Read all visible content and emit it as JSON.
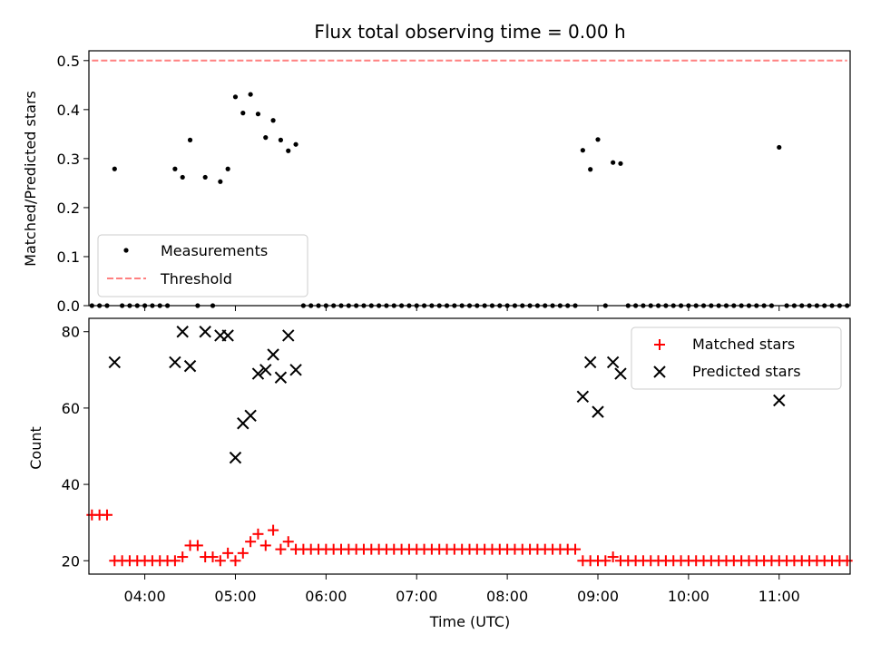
{
  "chart_data": [
    {
      "type": "scatter",
      "title": "Flux total observing time = 0.00 h",
      "xlabel": "",
      "ylabel": "Matched/Predicted stars",
      "xlim": [
        "03:23",
        "11:47"
      ],
      "ylim": [
        0,
        0.52
      ],
      "yticks": [
        "0.0",
        "0.1",
        "0.2",
        "0.3",
        "0.4",
        "0.5"
      ],
      "grid": false,
      "legend_position": "lower-left",
      "series": [
        {
          "name": "Measurements",
          "marker": "dot",
          "color": "#000000",
          "points": [
            {
              "x": "03:40",
              "y": 0.279
            },
            {
              "x": "04:20",
              "y": 0.279
            },
            {
              "x": "04:25",
              "y": 0.262
            },
            {
              "x": "04:30",
              "y": 0.338
            },
            {
              "x": "04:40",
              "y": 0.262
            },
            {
              "x": "04:50",
              "y": 0.253
            },
            {
              "x": "04:55",
              "y": 0.279
            },
            {
              "x": "05:00",
              "y": 0.426
            },
            {
              "x": "05:05",
              "y": 0.393
            },
            {
              "x": "05:10",
              "y": 0.431
            },
            {
              "x": "05:15",
              "y": 0.391
            },
            {
              "x": "05:20",
              "y": 0.343
            },
            {
              "x": "05:25",
              "y": 0.378
            },
            {
              "x": "05:30",
              "y": 0.338
            },
            {
              "x": "05:35",
              "y": 0.316
            },
            {
              "x": "05:40",
              "y": 0.329
            },
            {
              "x": "08:50",
              "y": 0.317
            },
            {
              "x": "08:55",
              "y": 0.278
            },
            {
              "x": "09:00",
              "y": 0.339
            },
            {
              "x": "09:10",
              "y": 0.292
            },
            {
              "x": "09:15",
              "y": 0.29
            },
            {
              "x": "11:00",
              "y": 0.323
            }
          ]
        },
        {
          "name": "Threshold",
          "type": "line",
          "dashed": true,
          "color": "#ff8080",
          "points": [
            {
              "x": "03:25",
              "y": 0.5
            },
            {
              "x": "11:45",
              "y": 0.5
            }
          ]
        }
      ]
    },
    {
      "type": "scatter",
      "title": "",
      "xlabel": "Time (UTC)",
      "ylabel": "Count",
      "xlim": [
        "03:23",
        "11:47"
      ],
      "ylim": [
        16.5,
        83.5
      ],
      "yticks": [
        "20",
        "40",
        "60",
        "80"
      ],
      "xticks": [
        "04:00",
        "05:00",
        "06:00",
        "07:00",
        "08:00",
        "09:00",
        "10:00",
        "11:00"
      ],
      "grid": false,
      "legend_position": "upper-right",
      "series": [
        {
          "name": "Matched stars",
          "marker": "plus",
          "color": "#ff0000",
          "points": [
            {
              "x": "03:25",
              "y": 32
            },
            {
              "x": "03:30",
              "y": 32
            },
            {
              "x": "03:35",
              "y": 32
            },
            {
              "x": "03:40",
              "y": 20
            },
            {
              "x": "03:45",
              "y": 20
            },
            {
              "x": "03:50",
              "y": 20
            },
            {
              "x": "03:55",
              "y": 20
            },
            {
              "x": "04:00",
              "y": 20
            },
            {
              "x": "04:05",
              "y": 20
            },
            {
              "x": "04:10",
              "y": 20
            },
            {
              "x": "04:15",
              "y": 20
            },
            {
              "x": "04:20",
              "y": 20
            },
            {
              "x": "04:25",
              "y": 21
            },
            {
              "x": "04:30",
              "y": 24
            },
            {
              "x": "04:35",
              "y": 24
            },
            {
              "x": "04:40",
              "y": 21
            },
            {
              "x": "04:45",
              "y": 21
            },
            {
              "x": "04:50",
              "y": 20
            },
            {
              "x": "04:55",
              "y": 22
            },
            {
              "x": "05:00",
              "y": 20
            },
            {
              "x": "05:05",
              "y": 22
            },
            {
              "x": "05:10",
              "y": 25
            },
            {
              "x": "05:15",
              "y": 27
            },
            {
              "x": "05:20",
              "y": 24
            },
            {
              "x": "05:25",
              "y": 28
            },
            {
              "x": "05:30",
              "y": 23
            },
            {
              "x": "05:35",
              "y": 25
            },
            {
              "x": "05:40",
              "y": 23
            },
            {
              "x": "05:45",
              "y": 23
            },
            {
              "x": "05:50",
              "y": 23
            },
            {
              "x": "05:55",
              "y": 23
            },
            {
              "x": "06:00",
              "y": 23
            },
            {
              "x": "06:05",
              "y": 23
            },
            {
              "x": "06:10",
              "y": 23
            },
            {
              "x": "06:15",
              "y": 23
            },
            {
              "x": "06:20",
              "y": 23
            },
            {
              "x": "06:25",
              "y": 23
            },
            {
              "x": "06:30",
              "y": 23
            },
            {
              "x": "06:35",
              "y": 23
            },
            {
              "x": "06:40",
              "y": 23
            },
            {
              "x": "06:45",
              "y": 23
            },
            {
              "x": "06:50",
              "y": 23
            },
            {
              "x": "06:55",
              "y": 23
            },
            {
              "x": "07:00",
              "y": 23
            },
            {
              "x": "07:05",
              "y": 23
            },
            {
              "x": "07:10",
              "y": 23
            },
            {
              "x": "07:15",
              "y": 23
            },
            {
              "x": "07:20",
              "y": 23
            },
            {
              "x": "07:25",
              "y": 23
            },
            {
              "x": "07:30",
              "y": 23
            },
            {
              "x": "07:35",
              "y": 23
            },
            {
              "x": "07:40",
              "y": 23
            },
            {
              "x": "07:45",
              "y": 23
            },
            {
              "x": "07:50",
              "y": 23
            },
            {
              "x": "07:55",
              "y": 23
            },
            {
              "x": "08:00",
              "y": 23
            },
            {
              "x": "08:05",
              "y": 23
            },
            {
              "x": "08:10",
              "y": 23
            },
            {
              "x": "08:15",
              "y": 23
            },
            {
              "x": "08:20",
              "y": 23
            },
            {
              "x": "08:25",
              "y": 23
            },
            {
              "x": "08:30",
              "y": 23
            },
            {
              "x": "08:35",
              "y": 23
            },
            {
              "x": "08:40",
              "y": 23
            },
            {
              "x": "08:45",
              "y": 23
            },
            {
              "x": "08:50",
              "y": 20
            },
            {
              "x": "08:55",
              "y": 20
            },
            {
              "x": "09:00",
              "y": 20
            },
            {
              "x": "09:05",
              "y": 20
            },
            {
              "x": "09:10",
              "y": 21
            },
            {
              "x": "09:15",
              "y": 20
            },
            {
              "x": "09:20",
              "y": 20
            },
            {
              "x": "09:25",
              "y": 20
            },
            {
              "x": "09:30",
              "y": 20
            },
            {
              "x": "09:35",
              "y": 20
            },
            {
              "x": "09:40",
              "y": 20
            },
            {
              "x": "09:45",
              "y": 20
            },
            {
              "x": "09:50",
              "y": 20
            },
            {
              "x": "09:55",
              "y": 20
            },
            {
              "x": "10:00",
              "y": 20
            },
            {
              "x": "10:05",
              "y": 20
            },
            {
              "x": "10:10",
              "y": 20
            },
            {
              "x": "10:15",
              "y": 20
            },
            {
              "x": "10:20",
              "y": 20
            },
            {
              "x": "10:25",
              "y": 20
            },
            {
              "x": "10:30",
              "y": 20
            },
            {
              "x": "10:35",
              "y": 20
            },
            {
              "x": "10:40",
              "y": 20
            },
            {
              "x": "10:45",
              "y": 20
            },
            {
              "x": "10:50",
              "y": 20
            },
            {
              "x": "10:55",
              "y": 20
            },
            {
              "x": "11:00",
              "y": 20
            },
            {
              "x": "11:05",
              "y": 20
            },
            {
              "x": "11:10",
              "y": 20
            },
            {
              "x": "11:15",
              "y": 20
            },
            {
              "x": "11:20",
              "y": 20
            },
            {
              "x": "11:25",
              "y": 20
            },
            {
              "x": "11:30",
              "y": 20
            },
            {
              "x": "11:35",
              "y": 20
            },
            {
              "x": "11:40",
              "y": 20
            },
            {
              "x": "11:45",
              "y": 20
            }
          ]
        },
        {
          "name": "Predicted stars",
          "marker": "x",
          "color": "#000000",
          "points": [
            {
              "x": "03:40",
              "y": 72
            },
            {
              "x": "04:20",
              "y": 72
            },
            {
              "x": "04:25",
              "y": 80
            },
            {
              "x": "04:30",
              "y": 71
            },
            {
              "x": "04:40",
              "y": 80
            },
            {
              "x": "04:50",
              "y": 79
            },
            {
              "x": "04:55",
              "y": 79
            },
            {
              "x": "05:00",
              "y": 47
            },
            {
              "x": "05:05",
              "y": 56
            },
            {
              "x": "05:10",
              "y": 58
            },
            {
              "x": "05:15",
              "y": 69
            },
            {
              "x": "05:20",
              "y": 70
            },
            {
              "x": "05:25",
              "y": 74
            },
            {
              "x": "05:30",
              "y": 68
            },
            {
              "x": "05:35",
              "y": 79
            },
            {
              "x": "05:40",
              "y": 70
            },
            {
              "x": "08:50",
              "y": 63
            },
            {
              "x": "08:55",
              "y": 72
            },
            {
              "x": "09:00",
              "y": 59
            },
            {
              "x": "09:10",
              "y": 72
            },
            {
              "x": "09:15",
              "y": 69
            },
            {
              "x": "11:00",
              "y": 62
            }
          ]
        }
      ]
    }
  ]
}
